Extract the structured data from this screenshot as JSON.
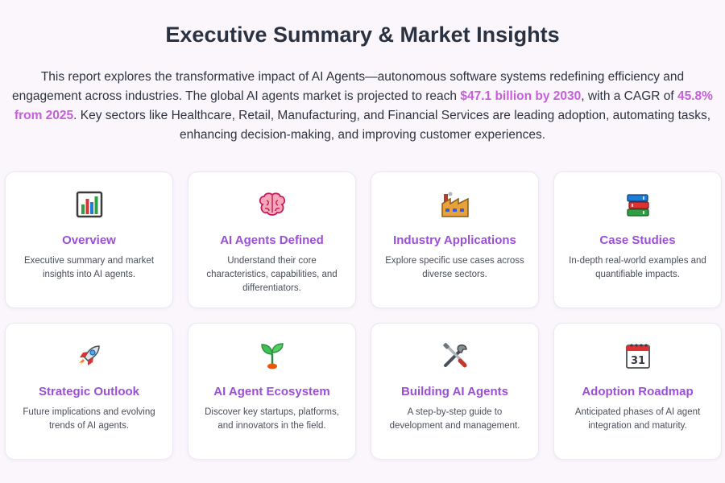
{
  "header": {
    "title": "Executive Summary & Market Insights"
  },
  "intro": {
    "part1": "This report explores the transformative impact of AI Agents—autonomous software systems redefining efficiency and engagement across industries. The global AI agents market is projected to reach ",
    "highlight1": "$47.1 billion by 2030",
    "part2": ", with a CAGR of ",
    "highlight2": "45.8% from 2025",
    "part3": ". Key sectors like Healthcare, Retail, Manufacturing, and Financial Services are leading adoption, automating tasks, enhancing decision-making, and improving customer experiences."
  },
  "colors": {
    "accent_title": "#9b4fd8",
    "highlight": "#c65fd9",
    "background": "#faf6fc"
  },
  "cards": [
    {
      "icon": "bar-chart-icon",
      "title": "Overview",
      "desc": "Executive summary and market insights into AI agents."
    },
    {
      "icon": "brain-icon",
      "title": "AI Agents Defined",
      "desc": "Understand their core characteristics, capabilities, and differentiators."
    },
    {
      "icon": "factory-icon",
      "title": "Industry Applications",
      "desc": "Explore specific use cases across diverse sectors."
    },
    {
      "icon": "books-icon",
      "title": "Case Studies",
      "desc": "In-depth real-world examples and quantifiable impacts."
    },
    {
      "icon": "rocket-icon",
      "title": "Strategic Outlook",
      "desc": "Future implications and evolving trends of AI agents."
    },
    {
      "icon": "seedling-icon",
      "title": "AI Agent Ecosystem",
      "desc": "Discover key startups, platforms, and innovators in the field."
    },
    {
      "icon": "tools-icon",
      "title": "Building AI Agents",
      "desc": "A step-by-step guide to development and management."
    },
    {
      "icon": "calendar-icon",
      "title": "Adoption Roadmap",
      "desc": "Anticipated phases of AI agent integration and maturity.",
      "calendar_day": "31"
    }
  ]
}
